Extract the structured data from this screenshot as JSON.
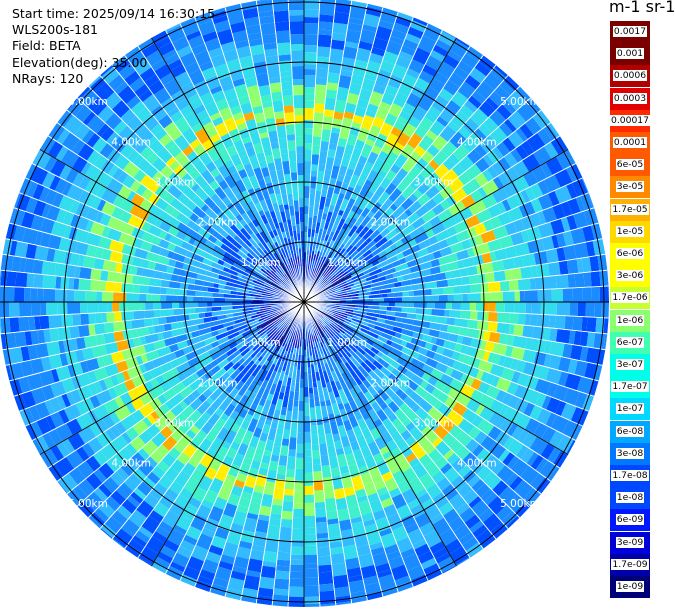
{
  "header": {
    "start_time": "Start time: 2025/09/14 16:30:15",
    "device": "WLS200s-181",
    "field": "Field: BETA",
    "elevation": "Elevation(deg): 35.00",
    "nrays": "NRays: 120"
  },
  "colorbar": {
    "unit": "m-1 sr-1",
    "colors": [
      "#7a0000",
      "#b00000",
      "#e00000",
      "#ff2a00",
      "#ff5a00",
      "#ff8a00",
      "#ffb000",
      "#ffd800",
      "#ffff00",
      "#c8ff30",
      "#8aff70",
      "#40ffb0",
      "#00ffe8",
      "#00d8ff",
      "#00a8ff",
      "#0078ff",
      "#0048ff",
      "#0018ff",
      "#0000d8",
      "#0000a8",
      "#000078"
    ],
    "labels": [
      "0.0017",
      "0.001",
      "0.0006",
      "0.0003",
      "0.00017",
      "0.0001",
      "6e-05",
      "3e-05",
      "1.7e-05",
      "1e-05",
      "6e-06",
      "3e-06",
      "1.7e-06",
      "1e-06",
      "6e-07",
      "3e-07",
      "1.7e-07",
      "1e-07",
      "6e-08",
      "3e-08",
      "1.7e-08",
      "1e-08",
      "6e-09",
      "3e-09",
      "1.7e-09",
      "1e-09"
    ]
  },
  "range_rings": {
    "ring1": "1.00km",
    "ring2": "2.00km",
    "ring3": "3.00km",
    "ring4": "4.00km",
    "ring5": "5.00km"
  },
  "scan": {
    "nrays": 120,
    "colors": {
      "dark_blue": "#0a1ecc",
      "blue": "#0050ff",
      "mid_blue": "#1a8cff",
      "light_blue": "#33bbff",
      "cyan": "#33ddee",
      "aqua": "#40f0cc",
      "green": "#90ff70",
      "yellow": "#ffee00",
      "orange": "#ffaa00"
    }
  }
}
